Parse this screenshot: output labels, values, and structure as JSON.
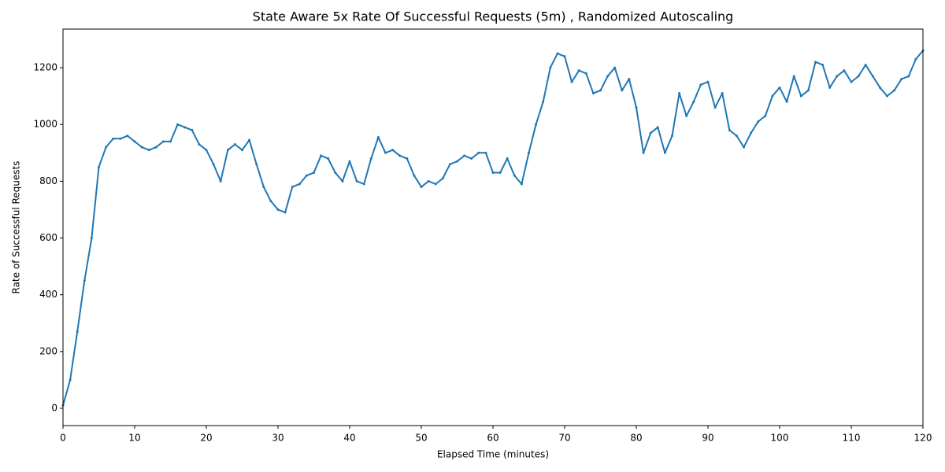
{
  "chart_data": {
    "type": "line",
    "title": "State Aware 5x Rate Of Successful Requests (5m) , Randomized Autoscaling",
    "xlabel": "Elapsed Time (minutes)",
    "ylabel": "Rate of Successful Requests",
    "x": [
      0,
      1,
      2,
      3,
      4,
      5,
      6,
      7,
      8,
      9,
      10,
      11,
      12,
      13,
      14,
      15,
      16,
      17,
      18,
      19,
      20,
      21,
      22,
      23,
      24,
      25,
      26,
      27,
      28,
      29,
      30,
      31,
      32,
      33,
      34,
      35,
      36,
      37,
      38,
      39,
      40,
      41,
      42,
      43,
      44,
      45,
      46,
      47,
      48,
      49,
      50,
      51,
      52,
      53,
      54,
      55,
      56,
      57,
      58,
      59,
      60,
      61,
      62,
      63,
      64,
      65,
      66,
      67,
      68,
      69,
      70,
      71,
      72,
      73,
      74,
      75,
      76,
      77,
      78,
      79,
      80,
      81,
      82,
      83,
      84,
      85,
      86,
      87,
      88,
      89,
      90,
      91,
      92,
      93,
      94,
      95,
      96,
      97,
      98,
      99,
      100,
      101,
      102,
      103,
      104,
      105,
      106,
      107,
      108,
      109,
      110,
      111,
      112,
      113,
      114,
      115,
      116,
      117,
      118,
      119,
      120
    ],
    "series": [
      {
        "name": "Rate of Successful Requests",
        "color": "#1f77b4",
        "values": [
          10,
          100,
          270,
          450,
          600,
          850,
          920,
          950,
          950,
          960,
          940,
          920,
          910,
          920,
          940,
          940,
          1000,
          990,
          980,
          930,
          910,
          860,
          800,
          910,
          930,
          910,
          945,
          860,
          780,
          730,
          700,
          690,
          780,
          790,
          820,
          830,
          890,
          880,
          830,
          800,
          870,
          800,
          790,
          880,
          955,
          900,
          910,
          890,
          880,
          820,
          780,
          800,
          790,
          810,
          860,
          870,
          890,
          880,
          900,
          900,
          830,
          830,
          880,
          820,
          790,
          900,
          1000,
          1080,
          1200,
          1250,
          1240,
          1150,
          1190,
          1180,
          1110,
          1120,
          1170,
          1200,
          1120,
          1160,
          1060,
          900,
          970,
          990,
          900,
          960,
          1110,
          1030,
          1080,
          1140,
          1150,
          1060,
          1110,
          980,
          960,
          920,
          970,
          1010,
          1030,
          1100,
          1130,
          1080,
          1170,
          1100,
          1120,
          1220,
          1210,
          1130,
          1170,
          1190,
          1150,
          1170,
          1210,
          1170,
          1130,
          1100,
          1120,
          1160,
          1170,
          1230,
          1260
        ]
      }
    ],
    "xlim": [
      0,
      120
    ],
    "xticks": [
      0,
      10,
      20,
      30,
      40,
      50,
      60,
      70,
      80,
      90,
      100,
      110,
      120
    ],
    "ylim": [
      -61,
      1336
    ],
    "yticks": [
      0,
      200,
      400,
      600,
      800,
      1000,
      1200
    ],
    "grid": false
  }
}
